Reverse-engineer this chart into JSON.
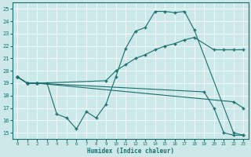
{
  "xlabel": "Humidex (Indice chaleur)",
  "background_color": "#cce8e8",
  "grid_color": "#b0d8d8",
  "line_color": "#1a6e6e",
  "xlim": [
    -0.5,
    23.5
  ],
  "ylim": [
    14.5,
    25.5
  ],
  "xticks": [
    0,
    1,
    2,
    3,
    4,
    5,
    6,
    7,
    8,
    9,
    10,
    11,
    12,
    13,
    14,
    15,
    16,
    17,
    18,
    19,
    20,
    21,
    22,
    23
  ],
  "yticks": [
    15,
    16,
    17,
    18,
    19,
    20,
    21,
    22,
    23,
    24,
    25
  ],
  "line1_x": [
    0,
    1,
    2,
    3,
    4,
    5,
    6,
    7,
    8,
    9,
    10,
    11,
    12,
    13,
    14,
    15,
    16,
    17,
    18,
    22,
    23
  ],
  "line1_y": [
    19.5,
    19.0,
    19.0,
    19.0,
    16.5,
    16.2,
    15.3,
    16.7,
    16.2,
    17.3,
    19.5,
    21.8,
    23.2,
    23.5,
    24.8,
    24.8,
    24.7,
    24.8,
    23.3,
    15.0,
    14.8
  ],
  "line2_x": [
    0,
    1,
    2,
    9,
    10,
    11,
    12,
    13,
    14,
    15,
    16,
    17,
    18,
    20,
    21,
    22,
    23
  ],
  "line2_y": [
    19.5,
    19.0,
    19.0,
    19.2,
    20.0,
    20.5,
    21.0,
    21.3,
    21.7,
    22.0,
    22.2,
    22.5,
    22.7,
    21.7,
    21.7,
    21.7,
    21.7
  ],
  "line3_x": [
    0,
    1,
    2,
    22,
    23
  ],
  "line3_y": [
    19.5,
    19.0,
    19.0,
    17.5,
    17.0
  ],
  "line4_x": [
    0,
    1,
    2,
    19,
    20,
    21,
    22,
    23
  ],
  "line4_y": [
    19.5,
    19.0,
    19.0,
    18.3,
    17.0,
    15.0,
    14.8,
    14.8
  ]
}
